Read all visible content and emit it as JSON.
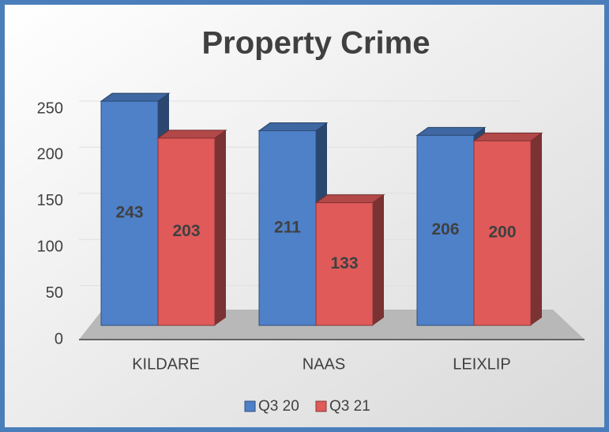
{
  "chart_data": {
    "type": "bar",
    "title": "Property Crime",
    "categories": [
      "KILDARE",
      "NAAS",
      "LEIXLIP"
    ],
    "series": [
      {
        "name": "Q3 20",
        "color": "#4f81c9",
        "values": [
          243,
          211,
          206
        ]
      },
      {
        "name": "Q3 21",
        "color": "#e05a5a",
        "values": [
          203,
          133,
          200
        ]
      }
    ],
    "ylim": [
      0,
      250
    ],
    "yticks": [
      0,
      50,
      100,
      150,
      200,
      250
    ],
    "grid": true,
    "legend": "bottom"
  }
}
